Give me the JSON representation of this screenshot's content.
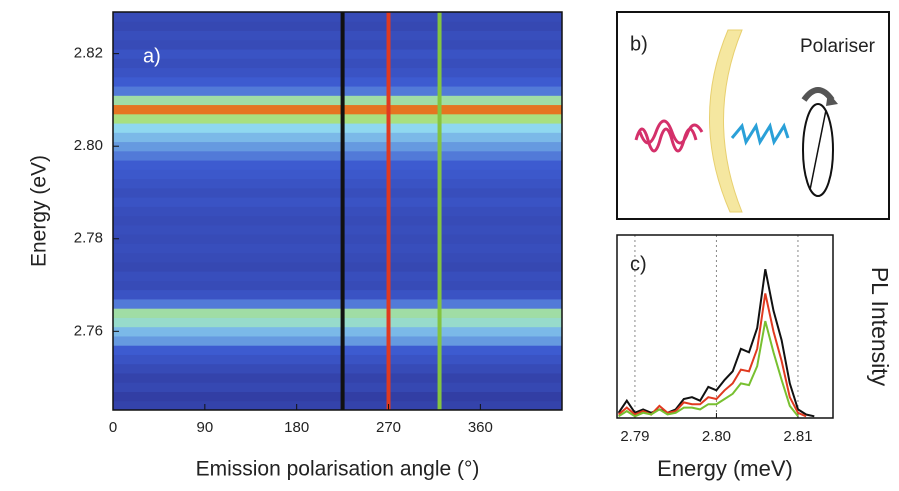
{
  "chart_data": [
    {
      "type": "heatmap",
      "panel_label": "a)",
      "x_label": "Emission polarisation angle (°)",
      "y_label": "Energy (eV)",
      "xlim": [
        0,
        440
      ],
      "ylim": [
        2.743,
        2.829
      ],
      "xticks": [
        0,
        90,
        180,
        270,
        360
      ],
      "yticks": [
        2.76,
        2.78,
        {
          "value": 2.8,
          "label": "2.80"
        },
        2.82
      ],
      "energies": [
        2.744,
        2.746,
        2.748,
        2.75,
        2.752,
        2.754,
        2.756,
        2.758,
        2.76,
        2.762,
        2.764,
        2.766,
        2.768,
        2.77,
        2.772,
        2.774,
        2.776,
        2.778,
        2.78,
        2.782,
        2.784,
        2.786,
        2.788,
        2.79,
        2.792,
        2.794,
        2.796,
        2.798,
        2.8,
        2.802,
        2.804,
        2.806,
        2.808,
        2.81,
        2.812,
        2.814,
        2.816,
        2.818,
        2.82,
        2.822,
        2.824,
        2.826,
        2.828
      ],
      "intensity": [
        0.15,
        0.12,
        0.18,
        0.15,
        0.2,
        0.25,
        0.3,
        0.4,
        0.45,
        0.55,
        0.6,
        0.35,
        0.25,
        0.2,
        0.22,
        0.18,
        0.2,
        0.22,
        0.2,
        0.22,
        0.2,
        0.22,
        0.25,
        0.22,
        0.25,
        0.28,
        0.3,
        0.35,
        0.4,
        0.45,
        0.5,
        0.65,
        0.9,
        0.6,
        0.35,
        0.3,
        0.25,
        0.22,
        0.25,
        0.2,
        0.22,
        0.18,
        0.2
      ],
      "colorscale": [
        [
          0,
          "#2b2b86"
        ],
        [
          0.3,
          "#3d5bd0"
        ],
        [
          0.5,
          "#8fd8f0"
        ],
        [
          0.65,
          "#a8e080"
        ],
        [
          0.8,
          "#f0e020"
        ],
        [
          0.95,
          "#e04020"
        ]
      ],
      "markers": [
        {
          "value": 225,
          "color": "#111111"
        },
        {
          "value": 270,
          "color": "#e03a20"
        },
        {
          "value": 320,
          "color": "#84c440"
        }
      ]
    },
    {
      "type": "line",
      "panel_label": "c)",
      "x_label": "Energy (meV)",
      "y_label": "PL Intensity",
      "xlim": [
        2.7878,
        2.8143
      ],
      "ylim": [
        0,
        1
      ],
      "xticks": [
        2.79,
        {
          "value": 2.8,
          "label": "2.80"
        },
        2.81
      ],
      "grid": true,
      "x": [
        2.788,
        2.789,
        2.79,
        2.791,
        2.792,
        2.793,
        2.794,
        2.795,
        2.796,
        2.797,
        2.798,
        2.799,
        2.8,
        2.801,
        2.802,
        2.803,
        2.804,
        2.805,
        2.806,
        2.807,
        2.808,
        2.809,
        2.81,
        2.811,
        2.812
      ],
      "series": [
        {
          "color": "#111111",
          "values": [
            0.03,
            0.1,
            0.03,
            0.05,
            0.03,
            0.05,
            0.03,
            0.05,
            0.11,
            0.12,
            0.1,
            0.18,
            0.16,
            0.22,
            0.27,
            0.4,
            0.38,
            0.52,
            0.86,
            0.62,
            0.45,
            0.2,
            0.05,
            0.02,
            0.01
          ]
        },
        {
          "color": "#e03a20",
          "values": [
            0.02,
            0.06,
            0.02,
            0.04,
            0.02,
            0.07,
            0.03,
            0.04,
            0.09,
            0.08,
            0.08,
            0.12,
            0.11,
            0.16,
            0.2,
            0.28,
            0.27,
            0.4,
            0.72,
            0.5,
            0.33,
            0.12,
            0.03,
            0.01,
            null
          ]
        },
        {
          "color": "#78c030",
          "values": [
            0.01,
            0.04,
            0.01,
            0.03,
            0.02,
            0.05,
            0.02,
            0.03,
            0.06,
            0.06,
            0.05,
            0.08,
            0.08,
            0.11,
            0.14,
            0.2,
            0.19,
            0.3,
            0.56,
            0.38,
            0.22,
            0.07,
            0.01,
            null,
            null
          ]
        }
      ]
    }
  ],
  "diagram": {
    "label": "b)",
    "polariser_label": "Polariser"
  }
}
